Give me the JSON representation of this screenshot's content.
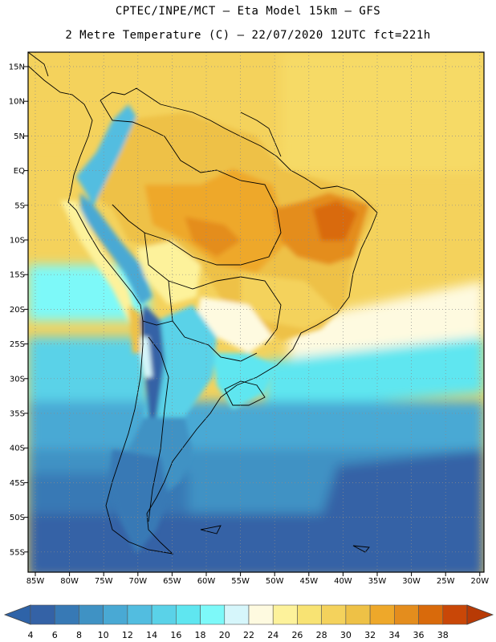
{
  "header": {
    "line1": "CPTEC/INPE/MCT –  Eta Model 15km – GFS",
    "line2": "2 Metre Temperature (C) – 22/07/2020 12UTC fct=221h"
  },
  "map": {
    "lat_labels": [
      "15N",
      "10N",
      "5N",
      "EQ",
      "5S",
      "10S",
      "15S",
      "20S",
      "25S",
      "30S",
      "35S",
      "40S",
      "45S",
      "50S",
      "55S"
    ],
    "lon_labels": [
      "85W",
      "80W",
      "75W",
      "70W",
      "65W",
      "60W",
      "55W",
      "50W",
      "45W",
      "40W",
      "35W",
      "30W",
      "25W",
      "20W"
    ]
  },
  "colorbar": {
    "labels": [
      "4",
      "6",
      "8",
      "10",
      "12",
      "14",
      "16",
      "18",
      "20",
      "22",
      "24",
      "26",
      "28",
      "30",
      "32",
      "34",
      "36",
      "38"
    ],
    "colors": [
      "#3462a6",
      "#3779b5",
      "#3f92c4",
      "#49a9d4",
      "#52bde0",
      "#5ad2e8",
      "#5fe6f0",
      "#7df9f9",
      "#d6f6fb",
      "#fefae0",
      "#fdf29b",
      "#f8e373",
      "#f4d25c",
      "#eec146",
      "#eea82a",
      "#e48d1d",
      "#d96a0b",
      "#c94707"
    ],
    "low_arrow_color": "#2e63a8",
    "high_arrow_color": "#b83a05"
  }
}
